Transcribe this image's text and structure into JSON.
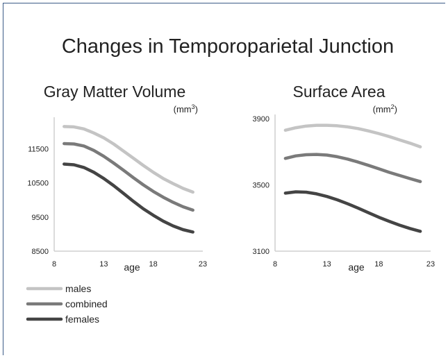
{
  "title": "Changes in Temporoparietal Junction",
  "colors": {
    "males": "#c4c4c4",
    "combined": "#7a7a7a",
    "females": "#444444",
    "axis": "#cfcfcf"
  },
  "legend": [
    {
      "name": "males",
      "color": "#c4c4c4"
    },
    {
      "name": "combined",
      "color": "#7a7a7a"
    },
    {
      "name": "females",
      "color": "#444444"
    }
  ],
  "chart_data": [
    {
      "type": "line",
      "title": "Gray Matter Volume",
      "unit_base": "(mm",
      "unit_sup": "3",
      "unit_close": ")",
      "xlabel": "age",
      "xlim": [
        8,
        23
      ],
      "xticks": [
        "8",
        "13",
        "18",
        "23"
      ],
      "ylim": [
        8500,
        12300
      ],
      "yticks": [
        "8500",
        "9500",
        "10500",
        "11500"
      ],
      "x": [
        9,
        10,
        11,
        12,
        13,
        14,
        15,
        16,
        17,
        18,
        19,
        20,
        21,
        22
      ],
      "series": [
        {
          "name": "males",
          "values": [
            12150,
            12140,
            12080,
            11960,
            11820,
            11640,
            11430,
            11220,
            11010,
            10810,
            10630,
            10480,
            10340,
            10230
          ]
        },
        {
          "name": "combined",
          "values": [
            11650,
            11640,
            11580,
            11450,
            11280,
            11080,
            10870,
            10650,
            10440,
            10250,
            10080,
            9930,
            9800,
            9700
          ]
        },
        {
          "name": "females",
          "values": [
            11050,
            11030,
            10950,
            10810,
            10630,
            10420,
            10190,
            9960,
            9740,
            9550,
            9380,
            9240,
            9130,
            9060
          ]
        }
      ]
    },
    {
      "type": "line",
      "title": "Surface Area",
      "unit_base": "(mm",
      "unit_sup": "2",
      "unit_close": ")",
      "xlabel": "age",
      "xlim": [
        8,
        23
      ],
      "xticks": [
        "8",
        "13",
        "18",
        "23"
      ],
      "ylim": [
        3100,
        3900
      ],
      "yticks": [
        "3100",
        "3500",
        "3900"
      ],
      "x": [
        9,
        10,
        11,
        12,
        13,
        14,
        15,
        16,
        17,
        18,
        19,
        20,
        21,
        22
      ],
      "series": [
        {
          "name": "males",
          "values": [
            3830,
            3845,
            3855,
            3860,
            3860,
            3857,
            3850,
            3840,
            3826,
            3810,
            3792,
            3772,
            3752,
            3730
          ]
        },
        {
          "name": "combined",
          "values": [
            3660,
            3675,
            3682,
            3684,
            3680,
            3670,
            3656,
            3638,
            3618,
            3597,
            3576,
            3557,
            3538,
            3520
          ]
        },
        {
          "name": "females",
          "values": [
            3450,
            3458,
            3456,
            3446,
            3430,
            3410,
            3386,
            3360,
            3332,
            3305,
            3280,
            3257,
            3237,
            3220
          ]
        }
      ]
    }
  ]
}
